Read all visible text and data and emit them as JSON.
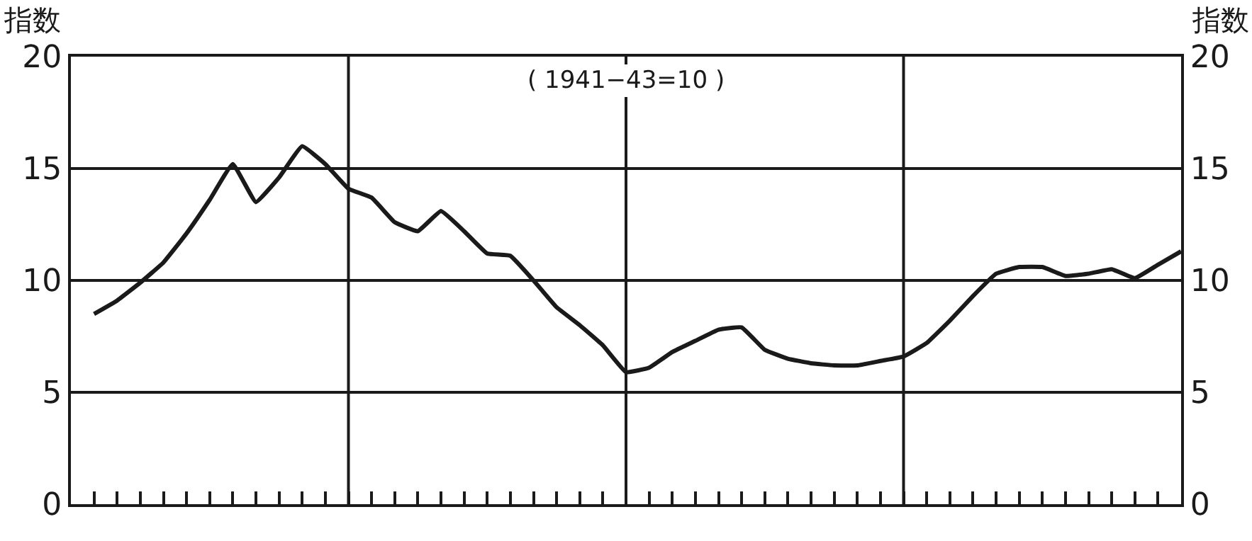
{
  "chart_data": {
    "type": "line",
    "ylabel": "指数",
    "y2label": "指数",
    "annotations": [
      "( 1941−43=10 )"
    ],
    "categories": [
      null,
      null,
      null,
      null,
      null,
      null,
      null,
      null,
      null,
      null,
      null,
      null,
      null,
      null,
      null,
      null,
      null,
      null,
      null,
      null,
      null,
      null,
      null,
      null,
      null,
      null,
      null,
      null,
      null,
      null,
      null,
      null,
      null,
      null,
      null,
      null,
      null,
      null,
      null,
      null,
      null,
      null,
      null,
      null,
      null,
      null,
      null,
      null,
      null
    ],
    "series": [
      {
        "color": "#1a1a1a",
        "values": [
          null,
          8.5,
          9.1,
          9.9,
          10.8,
          12.1,
          13.6,
          15.2,
          13.5,
          14.6,
          16.0,
          15.2,
          14.1,
          13.7,
          12.6,
          12.2,
          13.1,
          12.2,
          11.2,
          11.1,
          10.0,
          8.8,
          8.0,
          7.1,
          5.9,
          6.1,
          6.8,
          7.3,
          7.8,
          7.9,
          6.9,
          6.5,
          6.3,
          6.2,
          6.2,
          6.4,
          6.6,
          7.2,
          8.2,
          9.3,
          10.3,
          10.6,
          10.6,
          10.2,
          10.3,
          10.5,
          10.1,
          10.7,
          11.3
        ]
      }
    ],
    "ylim": [
      0,
      20
    ],
    "yticks": [
      0,
      5,
      10,
      15,
      20
    ],
    "y2lim": [
      0,
      20
    ],
    "y2ticks": [
      0,
      5,
      10,
      15,
      20
    ],
    "grid": true,
    "marker": "none",
    "line_style": "solid",
    "tick_labels": "y"
  }
}
